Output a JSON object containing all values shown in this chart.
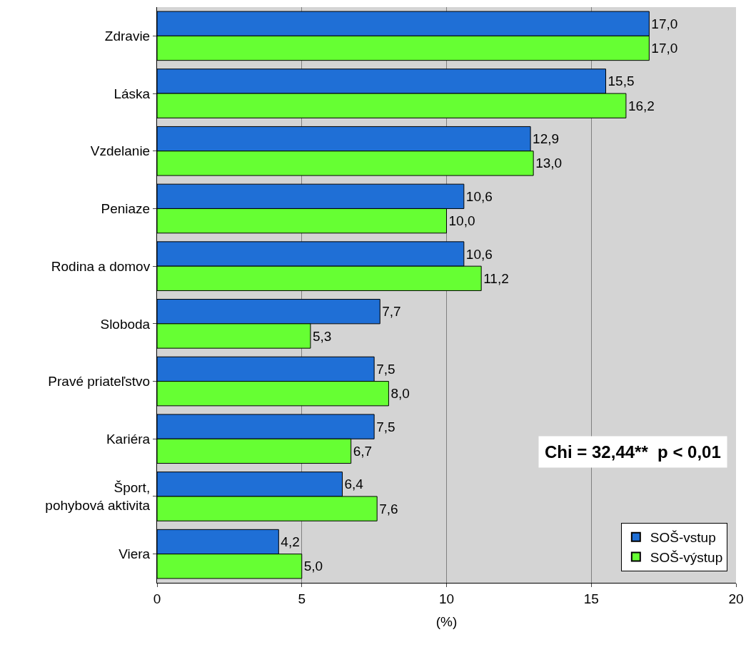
{
  "chart_data": {
    "type": "bar",
    "orientation": "horizontal",
    "xlabel": "(%)",
    "categories": [
      "Zdravie",
      "Láska",
      "Vzdelanie",
      "Peniaze",
      "Rodina a domov",
      "Sloboda",
      "Pravé priateľstvo",
      "Kariéra",
      "Šport, pohybová aktivita",
      "Viera"
    ],
    "series": [
      {
        "name": "SOŠ-vstup",
        "color": "#1f6fd6",
        "values": [
          17.0,
          15.5,
          12.9,
          10.6,
          10.6,
          7.7,
          7.5,
          7.5,
          6.4,
          4.2
        ],
        "value_labels": [
          "17,0",
          "15,5",
          "12,9",
          "10,6",
          "10,6",
          "7,7",
          "7,5",
          "7,5",
          "6,4",
          "4,2"
        ]
      },
      {
        "name": "SOŠ-výstup",
        "color": "#66ff33",
        "values": [
          17.0,
          16.2,
          13.0,
          10.0,
          11.2,
          5.3,
          8.0,
          6.7,
          7.6,
          5.0
        ],
        "value_labels": [
          "17,0",
          "16,2",
          "13,0",
          "10,0",
          "11,2",
          "5,3",
          "8,0",
          "6,7",
          "7,6",
          "5,0"
        ]
      }
    ],
    "xlim": [
      0,
      20
    ],
    "xticks": [
      0,
      5,
      10,
      15,
      20
    ],
    "grid": "x",
    "legend": "bottom right",
    "annotations": [
      "Chi = 32,44**  p < 0,01"
    ]
  }
}
